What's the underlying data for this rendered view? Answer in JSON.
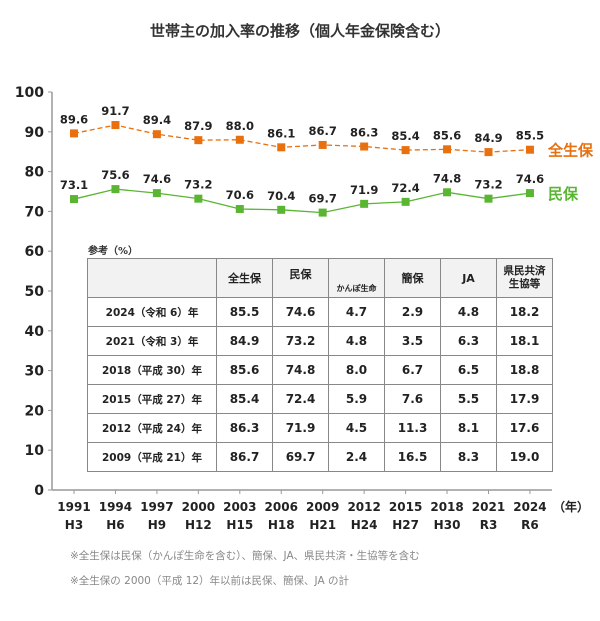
{
  "chart_data": {
    "type": "line",
    "title": "世帯主の加入率の推移（個人年金保険含む）",
    "x": [
      "1991",
      "1994",
      "1997",
      "2000",
      "2003",
      "2006",
      "2009",
      "2012",
      "2015",
      "2018",
      "2021",
      "2024"
    ],
    "x_sub": [
      "H3",
      "H6",
      "H9",
      "H12",
      "H15",
      "H18",
      "H21",
      "H24",
      "H27",
      "H30",
      "R3",
      "R6"
    ],
    "x_unit": "（年）",
    "ylim": [
      0,
      100
    ],
    "yticks": [
      0,
      10,
      20,
      30,
      40,
      50,
      60,
      70,
      80,
      90,
      100
    ],
    "series": [
      {
        "name": "全生保",
        "color": "#e8700f",
        "dashed": true,
        "values": [
          89.6,
          91.7,
          89.4,
          87.9,
          88.0,
          86.1,
          86.7,
          86.3,
          85.4,
          85.6,
          84.9,
          85.5
        ]
      },
      {
        "name": "民保",
        "color": "#5ab532",
        "dashed": false,
        "values": [
          73.1,
          75.6,
          74.6,
          73.2,
          70.6,
          70.4,
          69.7,
          71.9,
          72.4,
          74.8,
          73.2,
          74.6
        ]
      }
    ]
  },
  "table": {
    "caption": "参考（%）",
    "headers": [
      "全生保",
      "民保",
      "かんぽ生命",
      "簡保",
      "JA",
      "県民共済\n生協等"
    ],
    "rows": [
      {
        "year": "2024（令和 6）年",
        "values": [
          "85.5",
          "74.6",
          "4.7",
          "2.9",
          "4.8",
          "18.2"
        ]
      },
      {
        "year": "2021（令和 3）年",
        "values": [
          "84.9",
          "73.2",
          "4.8",
          "3.5",
          "6.3",
          "18.1"
        ]
      },
      {
        "year": "2018（平成 30）年",
        "values": [
          "85.6",
          "74.8",
          "8.0",
          "6.7",
          "6.5",
          "18.8"
        ]
      },
      {
        "year": "2015（平成 27）年",
        "values": [
          "85.4",
          "72.4",
          "5.9",
          "7.6",
          "5.5",
          "17.9"
        ]
      },
      {
        "year": "2012（平成 24）年",
        "values": [
          "86.3",
          "71.9",
          "4.5",
          "11.3",
          "8.1",
          "17.6"
        ]
      },
      {
        "year": "2009（平成 21）年",
        "values": [
          "86.7",
          "69.7",
          "2.4",
          "16.5",
          "8.3",
          "19.0"
        ]
      }
    ]
  },
  "notes": [
    "※全生保は民保（かんぽ生命を含む）、簡保、JA、県民共済・生協等を含む",
    "※全生保の 2000（平成 12）年以前は民保、簡保、JA の計"
  ]
}
